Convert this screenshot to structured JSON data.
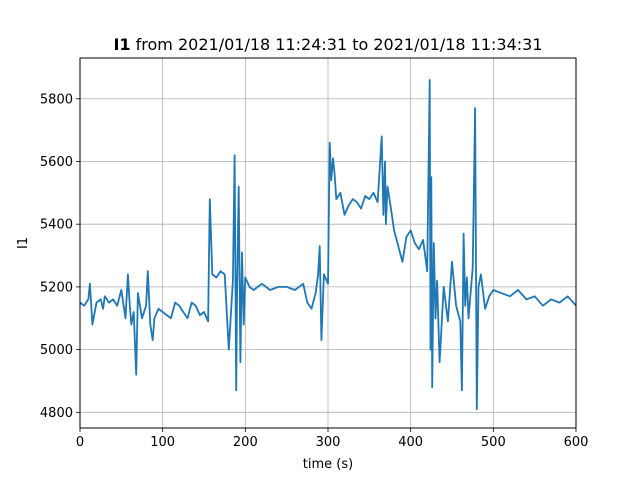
{
  "chart_data": {
    "type": "line",
    "title_bold": "I1",
    "title_rest": " from 2021/01/18 11:24:31 to 2021/01/18 11:34:31",
    "xlabel": "time (s)",
    "ylabel": "I1",
    "xlim": [
      0,
      600
    ],
    "ylim": [
      4750,
      5930
    ],
    "xticks": [
      0,
      100,
      200,
      300,
      400,
      500,
      600
    ],
    "yticks": [
      4800,
      5000,
      5200,
      5400,
      5600,
      5800
    ],
    "grid": true,
    "line_color": "#1f77b4",
    "series": [
      {
        "x": [
          0,
          5,
          10,
          12,
          15,
          20,
          25,
          28,
          30,
          35,
          40,
          45,
          50,
          55,
          58,
          60,
          62,
          65,
          68,
          70,
          75,
          80,
          82,
          85,
          88,
          90,
          95,
          100,
          105,
          110,
          115,
          120,
          125,
          130,
          135,
          140,
          145,
          150,
          155,
          157,
          160,
          165,
          170,
          175,
          180,
          185,
          187,
          189,
          190,
          192,
          194,
          196,
          198,
          200,
          205,
          210,
          215,
          220,
          225,
          230,
          240,
          250,
          260,
          270,
          275,
          280,
          285,
          288,
          290,
          292,
          295,
          300,
          302,
          304,
          306,
          308,
          310,
          315,
          320,
          325,
          330,
          335,
          340,
          345,
          350,
          355,
          360,
          365,
          367,
          369,
          370,
          372,
          375,
          380,
          385,
          390,
          395,
          400,
          405,
          410,
          415,
          420,
          423,
          424,
          425,
          426,
          428,
          430,
          432,
          435,
          440,
          445,
          450,
          455,
          460,
          462,
          464,
          466,
          468,
          470,
          475,
          478,
          480,
          482,
          485,
          490,
          495,
          500,
          510,
          520,
          530,
          540,
          550,
          560,
          570,
          580,
          590,
          600
        ],
        "y": [
          5150,
          5140,
          5160,
          5210,
          5080,
          5150,
          5160,
          5130,
          5170,
          5150,
          5160,
          5140,
          5190,
          5100,
          5240,
          5150,
          5080,
          5120,
          4920,
          5180,
          5100,
          5140,
          5250,
          5080,
          5030,
          5100,
          5130,
          5120,
          5110,
          5100,
          5150,
          5140,
          5120,
          5100,
          5150,
          5140,
          5110,
          5120,
          5090,
          5480,
          5240,
          5230,
          5250,
          5240,
          5000,
          5220,
          5620,
          4870,
          5200,
          5520,
          4960,
          5310,
          5080,
          5230,
          5200,
          5190,
          5200,
          5210,
          5200,
          5190,
          5200,
          5200,
          5190,
          5210,
          5150,
          5130,
          5180,
          5240,
          5330,
          5030,
          5240,
          5210,
          5660,
          5540,
          5610,
          5560,
          5480,
          5500,
          5430,
          5460,
          5480,
          5470,
          5450,
          5490,
          5480,
          5500,
          5470,
          5680,
          5430,
          5600,
          5400,
          5520,
          5470,
          5380,
          5330,
          5280,
          5360,
          5380,
          5340,
          5320,
          5350,
          5250,
          5860,
          5000,
          5550,
          4880,
          5340,
          5100,
          5220,
          4960,
          5200,
          5090,
          5280,
          5140,
          5090,
          4870,
          5370,
          5140,
          5230,
          5100,
          5260,
          5770,
          4810,
          5200,
          5240,
          5130,
          5170,
          5190,
          5180,
          5170,
          5190,
          5160,
          5170,
          5140,
          5160,
          5150,
          5170,
          5140
        ]
      }
    ]
  }
}
